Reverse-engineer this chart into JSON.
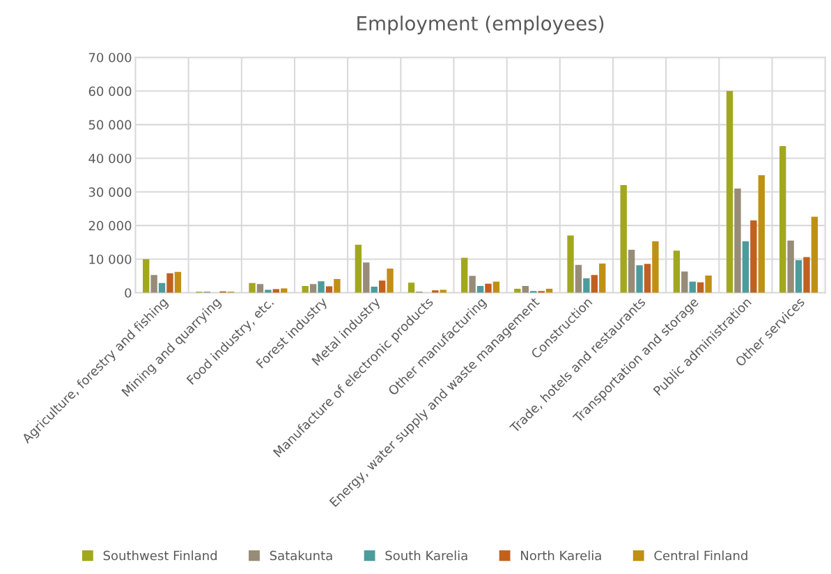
{
  "chart_data": {
    "type": "bar",
    "title": "Employment (employees)",
    "categories": [
      "Agriculture, forestry and fishing",
      "Mining and quarrying",
      "Food industry, etc.",
      "Forest industry",
      "Metal industry",
      "Manufacture of electronic products",
      "Other manufacturing",
      "Energy, water supply and waste management",
      "Construction",
      "Trade, hotels and restaurants",
      "Transportation and storage",
      "Public administration",
      "Other services"
    ],
    "series": [
      {
        "name": "Southwest Finland",
        "color": "#a2a81e",
        "values": [
          10000,
          300,
          2900,
          2000,
          14300,
          3000,
          10400,
          1200,
          17000,
          32000,
          12500,
          60000,
          43600
        ]
      },
      {
        "name": "Satakunta",
        "color": "#978c78",
        "values": [
          5300,
          300,
          2600,
          2600,
          9000,
          300,
          5000,
          2000,
          8300,
          12800,
          6300,
          31000,
          15500
        ]
      },
      {
        "name": "South Karelia",
        "color": "#4c9c9c",
        "values": [
          2900,
          null,
          900,
          3400,
          1800,
          null,
          2000,
          500,
          4300,
          8200,
          3300,
          15300,
          9700
        ]
      },
      {
        "name": "North Karelia",
        "color": "#c0611f",
        "values": [
          5800,
          400,
          1100,
          1900,
          3600,
          700,
          2700,
          500,
          5300,
          8600,
          3100,
          21500,
          10600
        ]
      },
      {
        "name": "Central Finland",
        "color": "#c09015",
        "values": [
          6200,
          300,
          1300,
          4100,
          7200,
          900,
          3300,
          1200,
          8700,
          15300,
          5100,
          35000,
          22600
        ]
      }
    ],
    "ylim": [
      0,
      70000
    ],
    "yticks": [
      0,
      {
        "value": 10000,
        "label": "10 000"
      },
      {
        "value": 20000,
        "label": "20 000"
      },
      {
        "value": 30000,
        "label": "30 000"
      },
      {
        "value": 40000,
        "label": "40 000"
      },
      {
        "value": 50000,
        "label": "50 000"
      },
      {
        "value": 60000,
        "label": "60 000"
      },
      {
        "value": 70000,
        "label": "70 000"
      }
    ],
    "grid": true,
    "legend": "bottom"
  }
}
